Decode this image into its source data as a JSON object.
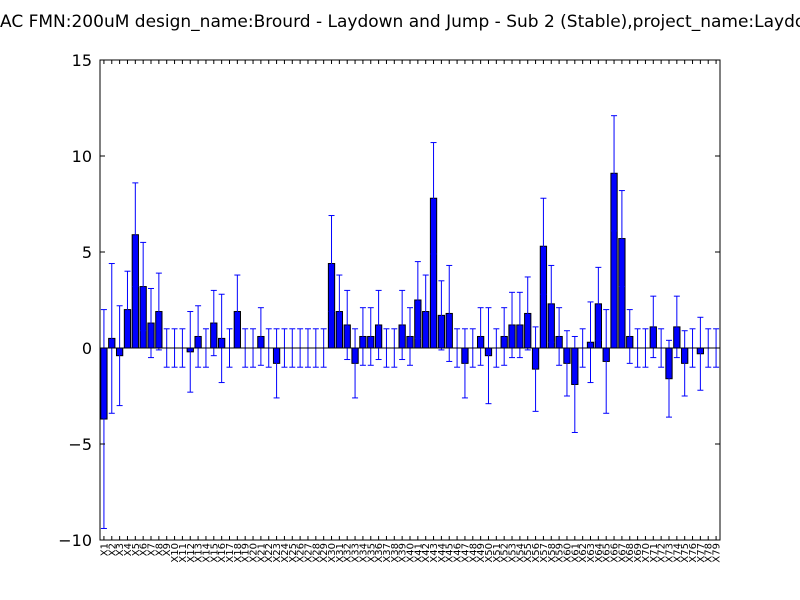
{
  "chart_data": {
    "type": "bar",
    "title": "AC  FMN:200uM  design_name:Brourd - Laydown and Jump - Sub 2 (Stable),project_name:Laydo",
    "xlabel": "",
    "ylabel": "",
    "ylim": [
      -10,
      15
    ],
    "yticks": [
      -10,
      -5,
      0,
      5,
      10,
      15
    ],
    "ytick_labels": [
      "−10",
      "−5",
      "0",
      "5",
      "10",
      "15"
    ],
    "grid": false,
    "colors": {
      "bar": "#0000ff",
      "error": "#0000ff",
      "axis": "#000000",
      "zero_line": "#000000"
    },
    "categories": [
      "X1",
      "X2",
      "X3",
      "X4",
      "X5",
      "X6",
      "X7",
      "X8",
      "X9",
      "X10",
      "X11",
      "X12",
      "X13",
      "X14",
      "X15",
      "X16",
      "X17",
      "X18",
      "X19",
      "X20",
      "X21",
      "X22",
      "X23",
      "X24",
      "X25",
      "X26",
      "X27",
      "X28",
      "X29",
      "X30",
      "X31",
      "X32",
      "X33",
      "X34",
      "X35",
      "X36",
      "X37",
      "X38",
      "X39",
      "X40",
      "X41",
      "X42",
      "X43",
      "X44",
      "X45",
      "X46",
      "X47",
      "X48",
      "X49",
      "X50",
      "X51",
      "X52",
      "X53",
      "X54",
      "X55",
      "X56",
      "X57",
      "X58",
      "X59",
      "X60",
      "X61",
      "X62",
      "X63",
      "X64",
      "X65",
      "X66",
      "X67",
      "X68",
      "X69",
      "X70",
      "X71",
      "X72",
      "X73",
      "X74",
      "X75",
      "X76",
      "X77",
      "X78",
      "X79"
    ],
    "values": [
      -3.7,
      0.5,
      -0.4,
      2.0,
      5.9,
      3.2,
      1.3,
      1.9,
      0,
      0,
      0,
      -0.2,
      0.6,
      0,
      1.3,
      0.5,
      0,
      1.9,
      0,
      0,
      0.6,
      0,
      -0.8,
      0,
      0,
      0,
      0,
      0,
      0,
      4.4,
      1.9,
      1.2,
      -0.8,
      0.6,
      0.6,
      1.2,
      0,
      0,
      1.2,
      0.6,
      2.5,
      1.9,
      7.8,
      1.7,
      1.8,
      0,
      -0.8,
      0,
      0.6,
      -0.4,
      0,
      0.6,
      1.2,
      1.2,
      1.8,
      -1.1,
      5.3,
      2.3,
      0.6,
      -0.8,
      -1.9,
      0,
      0.3,
      2.3,
      -0.7,
      9.1,
      5.7,
      0.6,
      0,
      0,
      1.1,
      0,
      -1.6,
      1.1,
      -0.8,
      0,
      -0.3,
      0,
      0
    ],
    "errors": [
      5.7,
      3.9,
      2.6,
      2.0,
      2.7,
      2.3,
      1.8,
      2.0,
      1.0,
      1.0,
      1.0,
      2.1,
      1.6,
      1.0,
      1.7,
      2.3,
      1.0,
      1.9,
      1.0,
      1.0,
      1.5,
      1.0,
      1.8,
      1.0,
      1.0,
      1.0,
      1.0,
      1.0,
      1.0,
      2.5,
      1.9,
      1.8,
      1.8,
      1.5,
      1.5,
      1.8,
      1.0,
      1.0,
      1.8,
      1.5,
      2.0,
      1.9,
      2.9,
      1.8,
      2.5,
      1.0,
      1.8,
      1.0,
      1.5,
      2.5,
      1.0,
      1.5,
      1.7,
      1.7,
      1.9,
      2.2,
      2.5,
      2.0,
      1.5,
      1.7,
      2.5,
      1.0,
      2.1,
      1.9,
      2.7,
      3.0,
      2.5,
      1.4,
      1.0,
      1.0,
      1.6,
      1.0,
      2.0,
      1.6,
      1.7,
      1.0,
      1.9,
      1.0,
      1.0
    ]
  }
}
